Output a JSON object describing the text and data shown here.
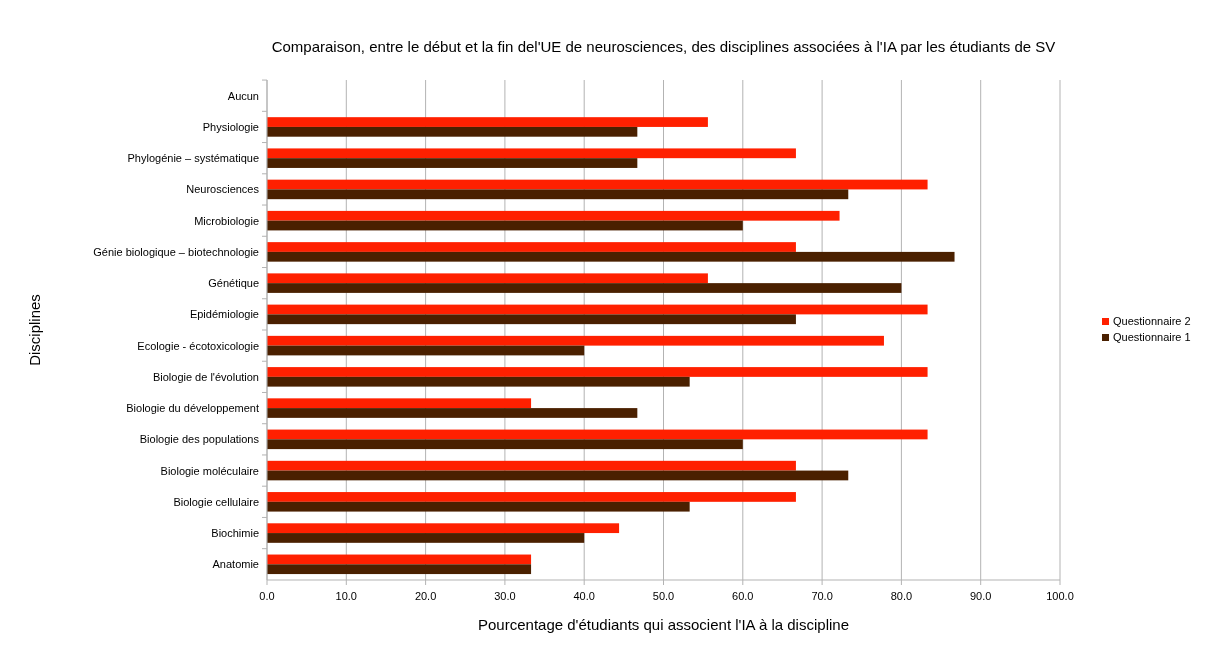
{
  "chart_data": {
    "type": "bar",
    "orientation": "horizontal",
    "title": "Comparaison, entre le début et la fin del'UE de neurosciences, des disciplines associées à l'IA par les étudiants de SV",
    "xlabel": "Pourcentage d'étudiants qui associent l'IA à la discipline",
    "ylabel": "Disciplines",
    "categories": [
      "Aucun",
      "Physiologie",
      "Phylogénie – systématique",
      "Neurosciences",
      "Microbiologie",
      "Génie biologique – biotechnologie",
      "Génétique",
      "Epidémiologie",
      "Ecologie - écotoxicologie",
      "Biologie de l'évolution",
      "Biologie du développement",
      "Biologie des populations",
      "Biologie moléculaire",
      "Biologie cellulaire",
      "Biochimie",
      "Anatomie"
    ],
    "series": [
      {
        "name": "Questionnaire 2",
        "color": "#ff2000",
        "values": [
          0,
          55.6,
          66.7,
          83.3,
          72.2,
          66.7,
          55.6,
          83.3,
          77.8,
          83.3,
          33.3,
          83.3,
          66.7,
          66.7,
          44.4,
          33.3
        ]
      },
      {
        "name": "Questionnaire 1",
        "color": "#4a2000",
        "values": [
          0,
          46.7,
          46.7,
          73.3,
          60,
          86.7,
          80,
          66.7,
          40,
          53.3,
          46.7,
          60,
          73.3,
          53.3,
          40,
          33.3
        ]
      }
    ],
    "xlim": [
      0,
      100
    ],
    "xticks": [
      {
        "value": 0,
        "label": "0.0"
      },
      {
        "value": 10,
        "label": "10.0"
      },
      {
        "value": 20,
        "label": "20.0"
      },
      {
        "value": 30,
        "label": "30.0"
      },
      {
        "value": 40,
        "label": "40.0"
      },
      {
        "value": 50,
        "label": "50.0"
      },
      {
        "value": 60,
        "label": "60.0"
      },
      {
        "value": 70,
        "label": "70.0"
      },
      {
        "value": 80,
        "label": "80.0"
      },
      {
        "value": 90,
        "label": "90.0"
      },
      {
        "value": 100,
        "label": "100.0"
      }
    ],
    "grid": "x",
    "legend": "right"
  }
}
